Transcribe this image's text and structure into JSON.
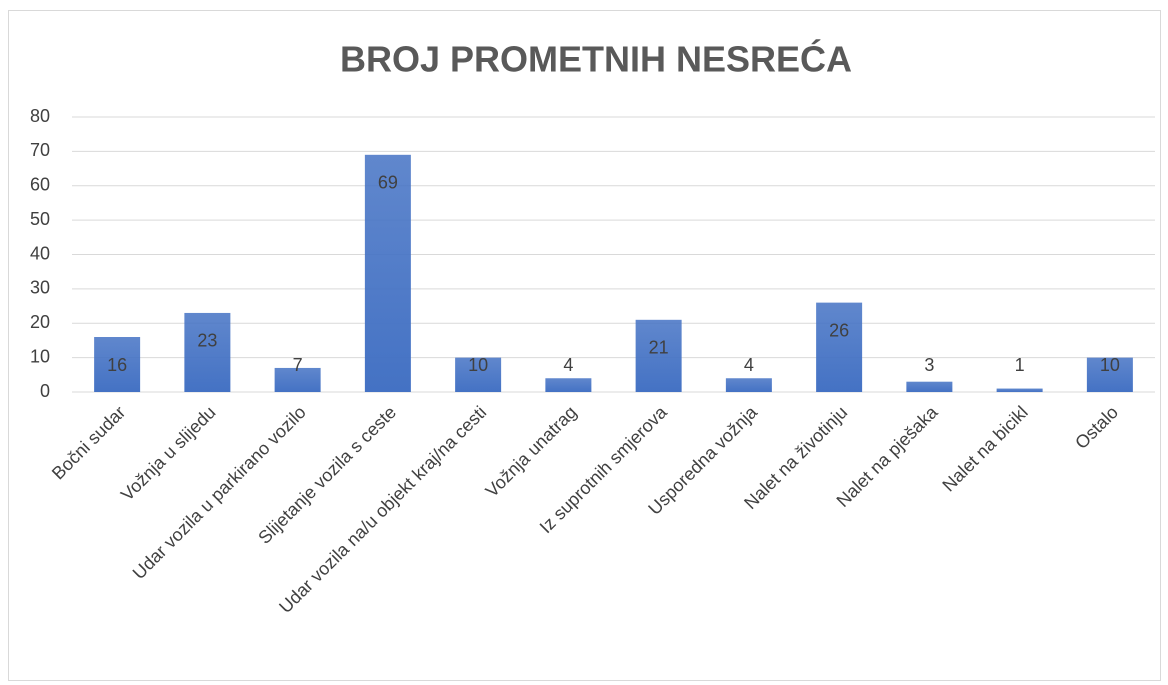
{
  "chart_data": {
    "type": "bar",
    "title": "BROJ PROMETNIH NESREĆA",
    "categories": [
      "Bočni sudar",
      "Vožnja u slijedu",
      "Udar vozila u parkirano vozilo",
      "Slijetanje vozila s ceste",
      "Udar vozila na/u objekt kraj/na cesti",
      "Vožnja unatrag",
      "Iz suprotnih smjerova",
      "Usporedna vožnja",
      "Nalet na životinju",
      "Nalet na pješaka",
      "Nalet na bicikl",
      "Ostalo"
    ],
    "values": [
      16,
      23,
      7,
      69,
      10,
      4,
      21,
      4,
      26,
      3,
      1,
      10
    ],
    "color": "#4472c4",
    "ylim": [
      0,
      80
    ],
    "yticks": [
      0,
      10,
      20,
      30,
      40,
      50,
      60,
      70,
      80
    ],
    "grid": true
  }
}
